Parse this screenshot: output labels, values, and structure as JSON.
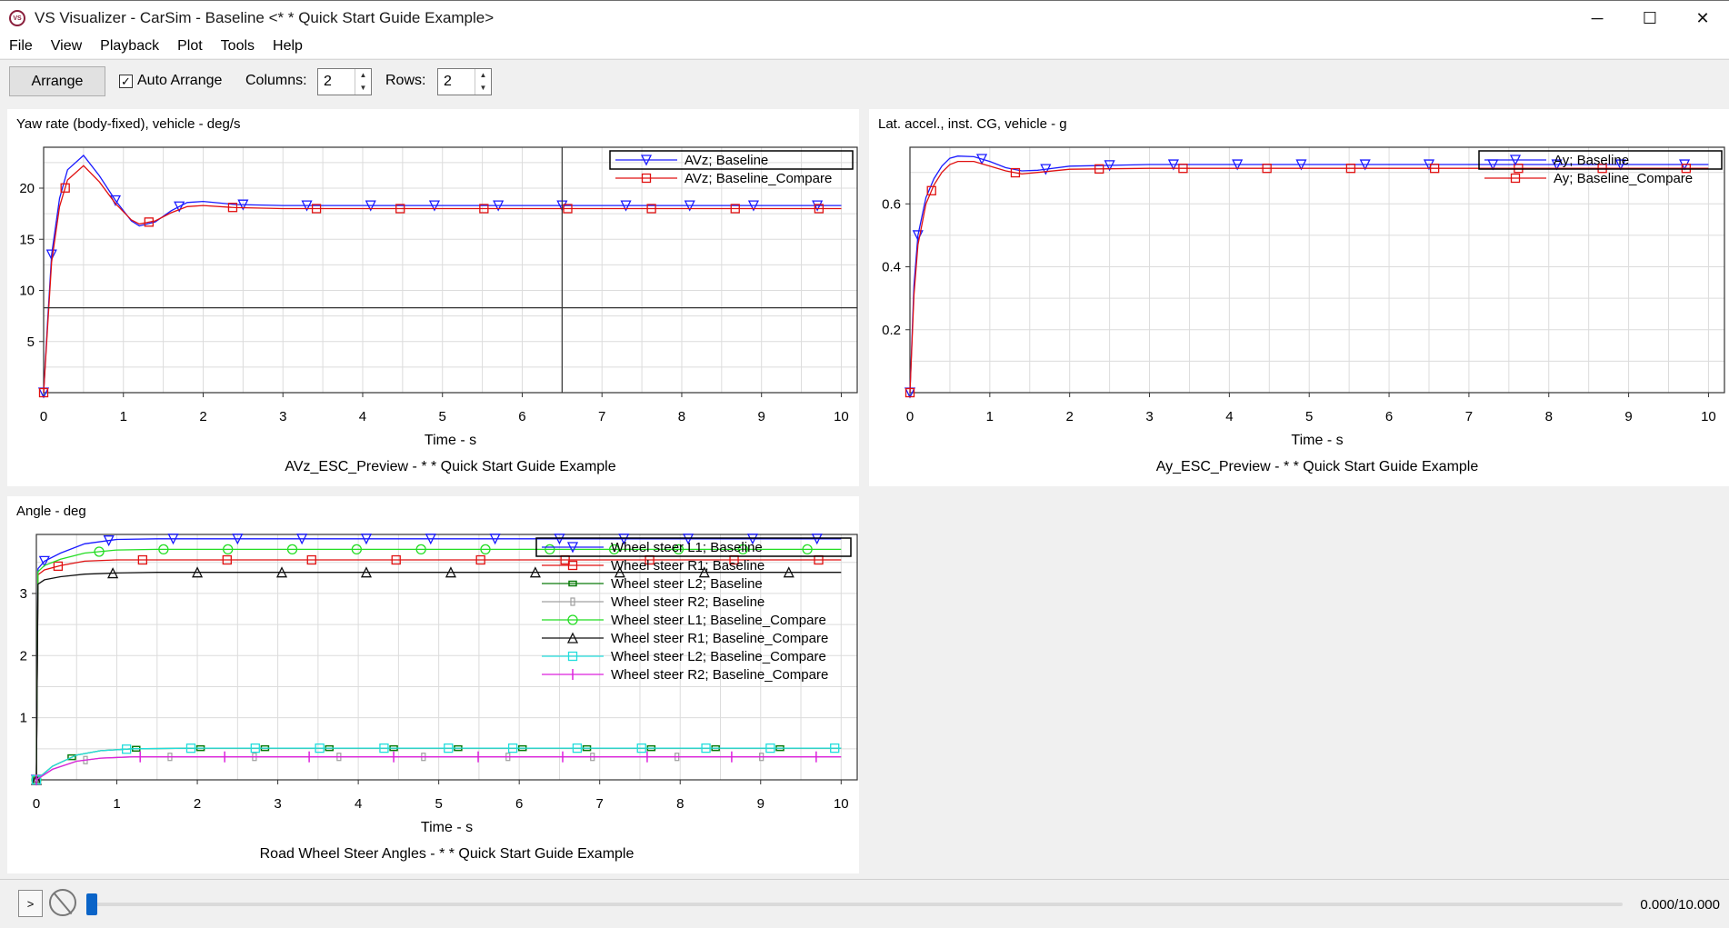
{
  "window": {
    "title": "VS Visualizer - CarSim - Baseline <* * Quick Start Guide Example>",
    "icon": "vs-visualizer-app-icon",
    "controls": {
      "minimize": "─",
      "maximize": "☐",
      "close": "✕"
    }
  },
  "menu": [
    "File",
    "View",
    "Playback",
    "Plot",
    "Tools",
    "Help"
  ],
  "toolbar": {
    "arrange_label": "Arrange",
    "auto_arrange_label": "Auto Arrange",
    "auto_arrange_checked": true,
    "columns_label": "Columns:",
    "columns_value": "2",
    "rows_label": "Rows:",
    "rows_value": "2"
  },
  "playback": {
    "play_label": ">",
    "loop_icon": "no-loop-icon",
    "time_readout": "0.000/10.000",
    "position": 0
  },
  "colors": {
    "baseline": "#1a1aff",
    "compare": "#e01010",
    "l2_base": "#0a7a0a",
    "r2_base": "#a0a0a0",
    "l1_comp": "#22dd22",
    "r1_comp": "#111111",
    "l2_comp": "#22dddd",
    "r2_comp": "#dd22dd"
  },
  "chart_data": [
    {
      "type": "line",
      "ylabel_title": "Yaw rate (body-fixed), vehicle - deg/s",
      "xlabel": "Time - s",
      "caption": "AVz_ESC_Preview - * * Quick Start Guide Example",
      "xlim": [
        0,
        10.2
      ],
      "ylim": [
        0,
        24
      ],
      "xticks": [
        0,
        1,
        2,
        3,
        4,
        5,
        6,
        7,
        8,
        9,
        10
      ],
      "yticks": [
        5,
        10,
        15,
        20
      ],
      "legend_position": "top-right",
      "cursor": {
        "x": 6.5,
        "y": 8.3
      },
      "series": [
        {
          "name": "AVz; Baseline",
          "marker": "triangle-down",
          "color": "#1a1aff",
          "x": [
            0,
            0.05,
            0.1,
            0.2,
            0.3,
            0.5,
            0.7,
            0.9,
            1.1,
            1.2,
            1.4,
            1.6,
            1.8,
            2.0,
            2.4,
            3.0,
            4.0,
            5.0,
            6.0,
            7.0,
            8.0,
            9.0,
            10.0
          ],
          "y": [
            0,
            7,
            13.5,
            19,
            21.8,
            23.2,
            21.2,
            18.8,
            16.8,
            16.3,
            16.7,
            17.8,
            18.6,
            18.7,
            18.4,
            18.3,
            18.3,
            18.3,
            18.3,
            18.3,
            18.3,
            18.3,
            18.3
          ]
        },
        {
          "name": "AVz; Baseline_Compare",
          "marker": "square",
          "color": "#e01010",
          "x": [
            0,
            0.05,
            0.1,
            0.2,
            0.3,
            0.5,
            0.7,
            0.9,
            1.1,
            1.2,
            1.4,
            1.6,
            1.8,
            2.0,
            2.4,
            3.0,
            4.0,
            5.0,
            6.0,
            7.0,
            8.0,
            9.0,
            10.0
          ],
          "y": [
            0,
            6.5,
            12.8,
            18.2,
            20.8,
            22.2,
            20.6,
            18.5,
            16.9,
            16.5,
            16.8,
            17.6,
            18.2,
            18.3,
            18.1,
            18.0,
            18.0,
            18.0,
            18.0,
            18.0,
            18.0,
            18.0,
            18.0
          ]
        }
      ]
    },
    {
      "type": "line",
      "ylabel_title": "Lat. accel., inst. CG, vehicle - g",
      "xlabel": "Time - s",
      "caption": "Ay_ESC_Preview - * * Quick Start Guide Example",
      "xlim": [
        0,
        10.2
      ],
      "ylim": [
        0,
        0.78
      ],
      "xticks": [
        0,
        1,
        2,
        3,
        4,
        5,
        6,
        7,
        8,
        9,
        10
      ],
      "yticks": [
        0.2,
        0.4,
        0.6
      ],
      "legend_position": "top-right",
      "series": [
        {
          "name": "Ay; Baseline",
          "marker": "triangle-down",
          "color": "#1a1aff",
          "x": [
            0,
            0.05,
            0.1,
            0.2,
            0.3,
            0.4,
            0.5,
            0.6,
            0.8,
            1.0,
            1.2,
            1.4,
            1.6,
            2.0,
            3.0,
            4.0,
            5.0,
            6.0,
            7.0,
            8.0,
            9.0,
            10.0
          ],
          "y": [
            0,
            0.34,
            0.5,
            0.62,
            0.68,
            0.72,
            0.745,
            0.752,
            0.75,
            0.735,
            0.715,
            0.705,
            0.707,
            0.72,
            0.725,
            0.725,
            0.725,
            0.725,
            0.725,
            0.725,
            0.725,
            0.725
          ]
        },
        {
          "name": "Ay; Baseline_Compare",
          "marker": "square",
          "color": "#e01010",
          "x": [
            0,
            0.05,
            0.1,
            0.2,
            0.3,
            0.4,
            0.5,
            0.6,
            0.8,
            1.0,
            1.2,
            1.4,
            1.6,
            2.0,
            3.0,
            4.0,
            5.0,
            6.0,
            7.0,
            8.0,
            9.0,
            10.0
          ],
          "y": [
            0,
            0.31,
            0.47,
            0.6,
            0.66,
            0.7,
            0.725,
            0.735,
            0.735,
            0.72,
            0.705,
            0.695,
            0.7,
            0.71,
            0.713,
            0.713,
            0.713,
            0.713,
            0.713,
            0.713,
            0.713,
            0.713
          ]
        }
      ]
    },
    {
      "type": "line",
      "ylabel_title": "Angle - deg",
      "xlabel": "Time - s",
      "caption": "Road Wheel Steer Angles - * * Quick Start Guide Example",
      "xlim": [
        0,
        10.2
      ],
      "ylim": [
        0,
        3.95
      ],
      "xticks": [
        0,
        1,
        2,
        3,
        4,
        5,
        6,
        7,
        8,
        9,
        10
      ],
      "yticks": [
        1,
        2,
        3
      ],
      "legend_position": "top-right",
      "series": [
        {
          "name": "Wheel steer L1; Baseline",
          "marker": "triangle-down",
          "color": "#1a1aff",
          "x": [
            0,
            0.02,
            0.1,
            0.3,
            0.6,
            1.0,
            1.5,
            2.0,
            10.0
          ],
          "y": [
            0,
            3.4,
            3.52,
            3.65,
            3.8,
            3.87,
            3.88,
            3.88,
            3.88
          ]
        },
        {
          "name": "Wheel steer R1; Baseline",
          "marker": "square",
          "color": "#e01010",
          "x": [
            0,
            0.02,
            0.1,
            0.3,
            0.6,
            1.0,
            1.5,
            2.0,
            10.0
          ],
          "y": [
            0,
            3.3,
            3.38,
            3.45,
            3.52,
            3.54,
            3.54,
            3.54,
            3.54
          ]
        },
        {
          "name": "Wheel steer L2; Baseline",
          "marker": "square-small",
          "color": "#0a7a0a",
          "x": [
            0,
            0.2,
            0.5,
            0.8,
            1.2,
            2.0,
            10.0
          ],
          "y": [
            0,
            0.22,
            0.4,
            0.47,
            0.5,
            0.51,
            0.51
          ]
        },
        {
          "name": "Wheel steer R2; Baseline",
          "marker": "bar",
          "color": "#a0a0a0",
          "x": [
            0,
            0.2,
            0.5,
            0.8,
            1.2,
            2.0,
            10.0
          ],
          "y": [
            0,
            0.17,
            0.3,
            0.35,
            0.37,
            0.37,
            0.37
          ]
        },
        {
          "name": "Wheel steer L1; Baseline_Compare",
          "marker": "circle",
          "color": "#22dd22",
          "x": [
            0,
            0.02,
            0.1,
            0.3,
            0.6,
            1.0,
            1.5,
            2.0,
            10.0
          ],
          "y": [
            0,
            3.35,
            3.45,
            3.55,
            3.65,
            3.7,
            3.71,
            3.71,
            3.71
          ]
        },
        {
          "name": "Wheel steer R1; Baseline_Compare",
          "marker": "triangle-up",
          "color": "#111111",
          "x": [
            0,
            0.02,
            0.1,
            0.3,
            0.6,
            1.0,
            1.5,
            2.0,
            10.0
          ],
          "y": [
            0,
            3.15,
            3.22,
            3.27,
            3.31,
            3.33,
            3.34,
            3.34,
            3.34
          ]
        },
        {
          "name": "Wheel steer L2; Baseline_Compare",
          "marker": "square",
          "color": "#22dddd",
          "x": [
            0,
            0.2,
            0.5,
            0.8,
            1.2,
            2.0,
            10.0
          ],
          "y": [
            0,
            0.22,
            0.4,
            0.47,
            0.5,
            0.51,
            0.51
          ]
        },
        {
          "name": "Wheel steer R2; Baseline_Compare",
          "marker": "plus",
          "color": "#dd22dd",
          "x": [
            0,
            0.2,
            0.5,
            0.8,
            1.2,
            2.0,
            10.0
          ],
          "y": [
            0,
            0.17,
            0.3,
            0.35,
            0.37,
            0.37,
            0.37
          ]
        }
      ]
    }
  ]
}
